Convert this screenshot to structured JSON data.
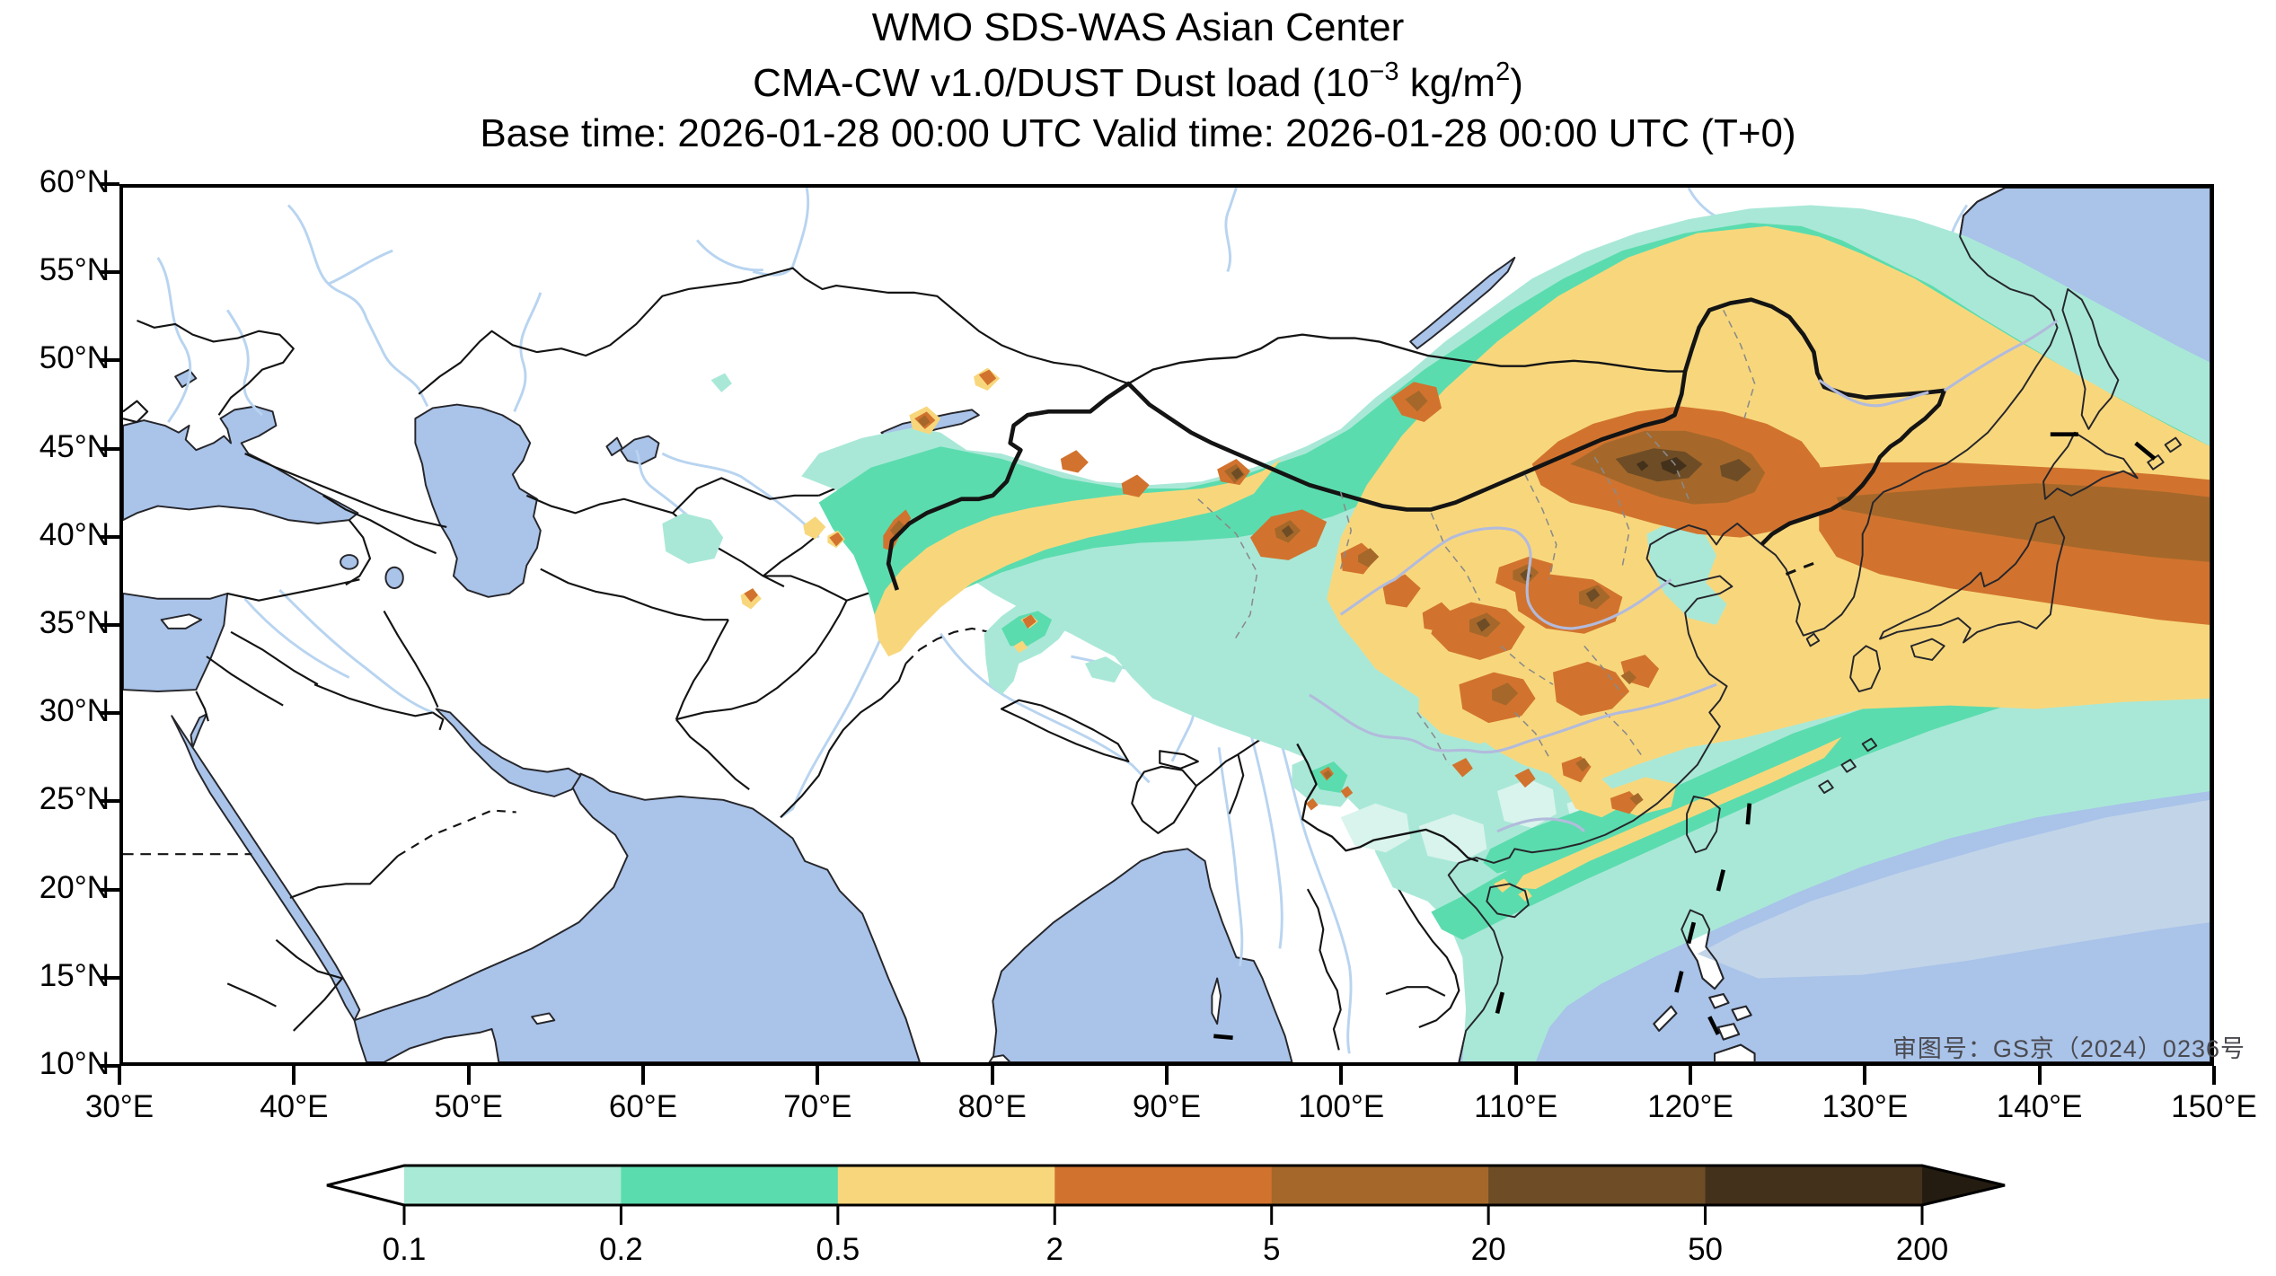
{
  "header": {
    "title_line1": "WMO SDS-WAS Asian Center",
    "title_line2_prefix": "CMA-CW v1.0/DUST Dust load (10",
    "title_line2_sup1": "−3",
    "title_line2_mid": " kg/m",
    "title_line2_sup2": "2",
    "title_line2_suffix": ")",
    "title_line3": "Base time: 2026-01-28 00:00 UTC Valid time: 2026-01-28 00:00 UTC (T+0)"
  },
  "map": {
    "lat_tick_labels": [
      "60°N",
      "55°N",
      "50°N",
      "45°N",
      "40°N",
      "35°N",
      "30°N",
      "25°N",
      "20°N",
      "15°N",
      "10°N"
    ],
    "lon_tick_labels": [
      "30°E",
      "40°E",
      "50°E",
      "60°E",
      "70°E",
      "80°E",
      "90°E",
      "100°E",
      "110°E",
      "120°E",
      "130°E",
      "140°E",
      "150°E"
    ],
    "watermark": "审图号：GS京（2024）0236号"
  },
  "colorbar": {
    "tick_labels": [
      "0.1",
      "0.2",
      "0.5",
      "2",
      "5",
      "20",
      "50",
      "200"
    ],
    "segment_colors": [
      "#a8ead5",
      "#5bdcae",
      "#f8d77c",
      "#d1732e",
      "#a5682a",
      "#6e4d26",
      "#44311b"
    ],
    "underflow_color": "#ffffff",
    "overflow_color": "#241c10",
    "outline_color": "#000000"
  },
  "palette": {
    "ocean": "#a9c3e9",
    "land": "#ffffff",
    "river_west": "#b8d4f0",
    "river_east": "#b2bbdc",
    "border": "#141414",
    "province_border": "#8a8a8a",
    "dust_0_1": "#a9e8d7",
    "dust_0_2": "#5bdcae",
    "dust_0_5": "#f8d77c",
    "dust_2": "#d1732e",
    "dust_5": "#a5682a",
    "dust_20": "#6e4d26",
    "dust_50": "#44311b"
  }
}
